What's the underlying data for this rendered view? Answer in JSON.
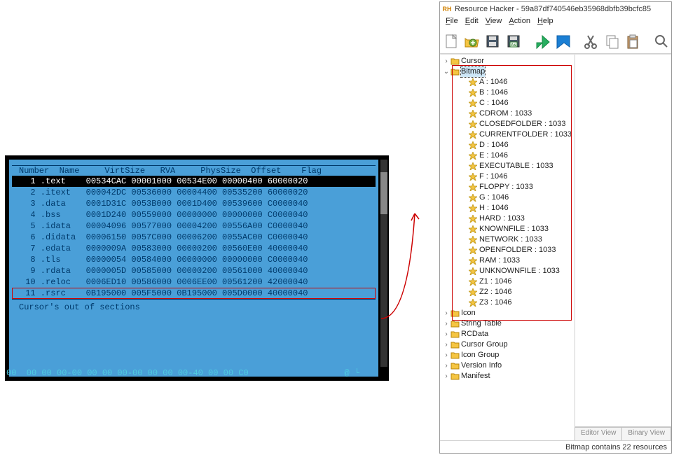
{
  "left": {
    "header": "Number  Name     VirtSize   RVA     PhysSize  Offset    Flag",
    "rows": [
      {
        "n": "  1",
        "name": ".text   ",
        "vs": "00534CAC",
        "rva": "00001000",
        "ps": "00534E00",
        "off": "00000400",
        "flag": "60000020",
        "sel": true,
        "hi": false
      },
      {
        "n": "  2",
        "name": ".itext  ",
        "vs": "000042DC",
        "rva": "00536000",
        "ps": "00004400",
        "off": "00535200",
        "flag": "60000020",
        "sel": false,
        "hi": false
      },
      {
        "n": "  3",
        "name": ".data   ",
        "vs": "0001D31C",
        "rva": "0053B000",
        "ps": "0001D400",
        "off": "00539600",
        "flag": "C0000040",
        "sel": false,
        "hi": false
      },
      {
        "n": "  4",
        "name": ".bss    ",
        "vs": "0001D240",
        "rva": "00559000",
        "ps": "00000000",
        "off": "00000000",
        "flag": "C0000040",
        "sel": false,
        "hi": false
      },
      {
        "n": "  5",
        "name": ".idata  ",
        "vs": "00004096",
        "rva": "00577000",
        "ps": "00004200",
        "off": "00556A00",
        "flag": "C0000040",
        "sel": false,
        "hi": false
      },
      {
        "n": "  6",
        "name": ".didata ",
        "vs": "00006150",
        "rva": "0057C000",
        "ps": "00006200",
        "off": "0055AC00",
        "flag": "C0000040",
        "sel": false,
        "hi": false
      },
      {
        "n": "  7",
        "name": ".edata  ",
        "vs": "0000009A",
        "rva": "00583000",
        "ps": "00000200",
        "off": "00560E00",
        "flag": "40000040",
        "sel": false,
        "hi": false
      },
      {
        "n": "  8",
        "name": ".tls    ",
        "vs": "00000054",
        "rva": "00584000",
        "ps": "00000000",
        "off": "00000000",
        "flag": "C0000040",
        "sel": false,
        "hi": false
      },
      {
        "n": "  9",
        "name": ".rdata  ",
        "vs": "0000005D",
        "rva": "00585000",
        "ps": "00000200",
        "off": "00561000",
        "flag": "40000040",
        "sel": false,
        "hi": false
      },
      {
        "n": " 10",
        "name": ".reloc  ",
        "vs": "0006ED10",
        "rva": "00586000",
        "ps": "0006EE00",
        "off": "00561200",
        "flag": "42000040",
        "sel": false,
        "hi": false
      },
      {
        "n": " 11",
        "name": ".rsrc   ",
        "vs": "0B195000",
        "rva": "005F5000",
        "ps": "0B195000",
        "off": "005D0000",
        "flag": "40000040",
        "sel": false,
        "hi": true
      }
    ],
    "footer": "Cursor's out of sections",
    "hex": "00  00 00 00-00 00 00 00-00 00 00 00-40 00 00 C0                   @ └"
  },
  "rh": {
    "title": "Resource Hacker - 59a87df740546eb35968dbfb39bcfc85",
    "menus": [
      "File",
      "Edit",
      "View",
      "Action",
      "Help"
    ],
    "toolbar_icons": [
      "new",
      "open",
      "save",
      "save-as",
      "green-run",
      "blue-flag",
      "scissors",
      "copy",
      "paste",
      "search"
    ],
    "tree": {
      "top": [
        {
          "label": "Cursor"
        }
      ],
      "expanded": {
        "label": "Bitmap",
        "items": [
          "A : 1046",
          "B : 1046",
          "C : 1046",
          "CDROM : 1033",
          "CLOSEDFOLDER : 1033",
          "CURRENTFOLDER : 1033",
          "D : 1046",
          "E : 1046",
          "EXECUTABLE : 1033",
          "F : 1046",
          "FLOPPY : 1033",
          "G : 1046",
          "H : 1046",
          "HARD : 1033",
          "KNOWNFILE : 1033",
          "NETWORK : 1033",
          "OPENFOLDER : 1033",
          "RAM : 1033",
          "UNKNOWNFILE : 1033",
          "Z1 : 1046",
          "Z2 : 1046",
          "Z3 : 1046"
        ]
      },
      "rest": [
        "Icon",
        "String Table",
        "RCData",
        "Cursor Group",
        "Icon Group",
        "Version Info",
        "Manifest"
      ]
    },
    "tabs": [
      "Editor View",
      "Binary View"
    ],
    "status": "Bitmap contains 22 resources"
  },
  "colors": {
    "term_bg": "#4a9fd8",
    "term_fg": "#003a6b",
    "sel_bg": "#000",
    "hi_border": "#c00",
    "hex_fg": "#4fcde0"
  }
}
